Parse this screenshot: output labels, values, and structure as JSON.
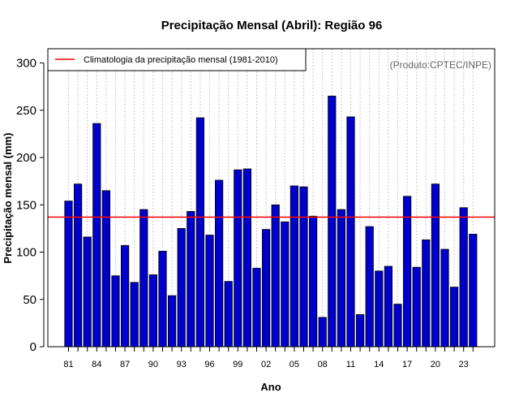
{
  "chart_data": {
    "type": "bar",
    "title": "Precipitação Mensal (Abril): Região 96",
    "xlabel": "Ano",
    "ylabel": "Precipitação mensal (mm)",
    "ylim": [
      0,
      300
    ],
    "yticks": [
      0,
      50,
      100,
      150,
      200,
      250,
      300
    ],
    "categories": [
      "81",
      "82",
      "83",
      "84",
      "85",
      "86",
      "87",
      "88",
      "89",
      "90",
      "91",
      "92",
      "93",
      "94",
      "95",
      "96",
      "97",
      "98",
      "99",
      "00",
      "01",
      "02",
      "03",
      "04",
      "05",
      "06",
      "07",
      "08",
      "09",
      "10",
      "11",
      "12",
      "13",
      "14",
      "15",
      "16",
      "17",
      "18",
      "19",
      "20",
      "21",
      "22",
      "23",
      "24"
    ],
    "xtick_labels": [
      "81",
      "84",
      "87",
      "90",
      "93",
      "96",
      "99",
      "02",
      "05",
      "08",
      "11",
      "14",
      "17",
      "20",
      "23"
    ],
    "values": [
      154,
      172,
      116,
      236,
      165,
      75,
      107,
      68,
      145,
      76,
      101,
      54,
      125,
      143,
      242,
      118,
      176,
      69,
      187,
      188,
      83,
      124,
      150,
      132,
      170,
      169,
      138,
      31,
      265,
      145,
      243,
      34,
      127,
      80,
      85,
      45,
      159,
      84,
      113,
      172,
      103,
      63,
      147,
      119
    ],
    "climatology": 137,
    "legend": {
      "position": "top-left",
      "label": "Climatologia da precipitação mensal (1981-2010)"
    },
    "grid": "vertical-dotted",
    "annotation": "(Produto:CPTEC/INPE)",
    "colors": {
      "bar_fill": "#0000cc",
      "bar_edge": "#000000",
      "climatology_line": "#ff0000",
      "grid": "#c8c8c8"
    }
  }
}
